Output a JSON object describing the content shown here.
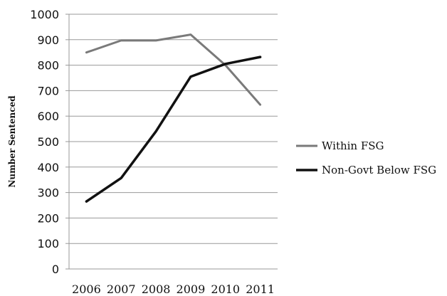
{
  "chart_data": {
    "type": "line",
    "categories": [
      "2006",
      "2007",
      "2008",
      "2009",
      "2010",
      "2011"
    ],
    "series": [
      {
        "name": "Within FSG",
        "values": [
          850,
          897,
          897,
          920,
          800,
          645
        ],
        "color": "#7a7a7a"
      },
      {
        "name": "Non-Govt Below FSG",
        "values": [
          265,
          357,
          540,
          755,
          805,
          832
        ],
        "color": "#111111"
      }
    ],
    "ylabel": "Number Sentenced",
    "xlabel": "",
    "ylim": [
      0,
      1000
    ],
    "yticks": [
      0,
      100,
      200,
      300,
      400,
      500,
      600,
      700,
      800,
      900,
      1000
    ],
    "grid": true,
    "legend_position": "right"
  }
}
